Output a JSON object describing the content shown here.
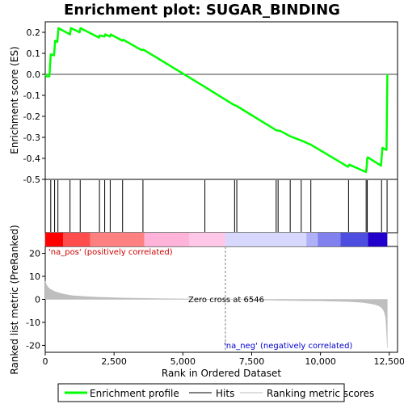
{
  "chart_data": {
    "type": "line",
    "title": "Enrichment plot: SUGAR_BINDING",
    "x_axis": {
      "label": "Rank in Ordered Dataset",
      "range": [
        0,
        12800
      ],
      "ticks": [
        0,
        2500,
        5000,
        7500,
        10000,
        12500
      ],
      "tick_labels": [
        "0",
        "2,500",
        "5,000",
        "7,500",
        "10,000",
        "12,500"
      ]
    },
    "es_axis": {
      "label": "Enrichment score (ES)",
      "range": [
        -0.5,
        0.25
      ],
      "ticks": [
        0.2,
        0.1,
        0.0,
        -0.1,
        -0.2,
        -0.3,
        -0.4,
        -0.5
      ],
      "tick_labels": [
        "0.2",
        "0.1",
        "0.0",
        "-0.1",
        "-0.2",
        "-0.3",
        "-0.4",
        "-0.5"
      ]
    },
    "metric_axis": {
      "label": "Ranked list metric (PreRanked)",
      "range": [
        -23,
        23
      ],
      "ticks": [
        20,
        10,
        0,
        -10,
        -20
      ],
      "tick_labels": [
        "20",
        "10",
        "0",
        "-10",
        "-20"
      ]
    },
    "enrichment_profile": {
      "name": "Enrichment profile",
      "color": "#00ff00",
      "points": [
        [
          0,
          0.0
        ],
        [
          60,
          -0.01
        ],
        [
          150,
          -0.01
        ],
        [
          200,
          0.095
        ],
        [
          320,
          0.09
        ],
        [
          360,
          0.16
        ],
        [
          440,
          0.155
        ],
        [
          480,
          0.22
        ],
        [
          900,
          0.19
        ],
        [
          930,
          0.22
        ],
        [
          1250,
          0.2
        ],
        [
          1280,
          0.22
        ],
        [
          1950,
          0.175
        ],
        [
          1980,
          0.185
        ],
        [
          2150,
          0.18
        ],
        [
          2180,
          0.19
        ],
        [
          2350,
          0.18
        ],
        [
          2380,
          0.19
        ],
        [
          2800,
          0.16
        ],
        [
          2830,
          0.165
        ],
        [
          3500,
          0.115
        ],
        [
          3530,
          0.118
        ],
        [
          3600,
          0.115
        ],
        [
          5800,
          -0.06
        ],
        [
          6850,
          -0.145
        ],
        [
          6950,
          -0.15
        ],
        [
          8380,
          -0.265
        ],
        [
          8450,
          -0.268
        ],
        [
          8550,
          -0.27
        ],
        [
          8900,
          -0.295
        ],
        [
          9300,
          -0.315
        ],
        [
          9650,
          -0.335
        ],
        [
          11000,
          -0.44
        ],
        [
          11050,
          -0.43
        ],
        [
          11650,
          -0.465
        ],
        [
          11680,
          -0.44
        ],
        [
          11700,
          -0.4
        ],
        [
          11720,
          -0.395
        ],
        [
          12200,
          -0.435
        ],
        [
          12250,
          -0.35
        ],
        [
          12400,
          -0.36
        ],
        [
          12430,
          0.0
        ]
      ]
    },
    "hits": {
      "name": "Hits",
      "color": "#000000",
      "ranks": [
        200,
        340,
        460,
        900,
        1270,
        1970,
        2160,
        2360,
        2810,
        3550,
        5800,
        6880,
        6960,
        8390,
        8460,
        8900,
        9300,
        9650,
        11020,
        11660,
        11700,
        12220,
        12420
      ]
    },
    "ranking_metric": {
      "name": "Ranking metric scores",
      "color": "#bebebe",
      "points": [
        [
          0,
          8.0
        ],
        [
          40,
          6.5
        ],
        [
          100,
          5.3
        ],
        [
          200,
          4.3
        ],
        [
          350,
          3.4
        ],
        [
          500,
          2.8
        ],
        [
          700,
          2.2
        ],
        [
          1000,
          1.6
        ],
        [
          1500,
          1.2
        ],
        [
          2000,
          0.9
        ],
        [
          3000,
          0.55
        ],
        [
          4000,
          0.35
        ],
        [
          5000,
          0.2
        ],
        [
          6000,
          0.07
        ],
        [
          6546,
          0.0
        ],
        [
          7000,
          -0.1
        ],
        [
          8000,
          -0.3
        ],
        [
          9000,
          -0.5
        ],
        [
          10000,
          -0.65
        ],
        [
          10500,
          -0.8
        ],
        [
          11000,
          -0.95
        ],
        [
          11500,
          -1.3
        ],
        [
          11800,
          -1.8
        ],
        [
          12000,
          -2.3
        ],
        [
          12150,
          -3.0
        ],
        [
          12250,
          -4.0
        ],
        [
          12320,
          -5.5
        ],
        [
          12370,
          -8.0
        ],
        [
          12400,
          -14.0
        ],
        [
          12430,
          -21.0
        ]
      ]
    },
    "zero_cross": {
      "rank": 6546,
      "label": "Zero cross at 6546"
    },
    "annotations": {
      "na_pos": "'na_pos' (positively correlated)",
      "na_neg": "'na_neg' (negatively correlated)"
    },
    "legend": {
      "position": "bottom",
      "entries": [
        {
          "label": "Enrichment profile",
          "color": "#00ff00"
        },
        {
          "label": "Hits",
          "color": "#000000"
        },
        {
          "label": "Ranking metric scores",
          "color": "#bebebe"
        }
      ]
    },
    "heatmap_colors": {
      "positive": [
        "#ff0000",
        "#ff4d4d",
        "#ff8080",
        "#ffb3d9",
        "#ffc8e8"
      ],
      "negative": [
        "#d8d8ff",
        "#b0b0f8",
        "#8080ee",
        "#4d4de0",
        "#2200cc"
      ]
    },
    "colors": {
      "pos_annotation": "#cc0000",
      "neg_annotation": "#0000cc",
      "zero_line": "#808080"
    }
  }
}
